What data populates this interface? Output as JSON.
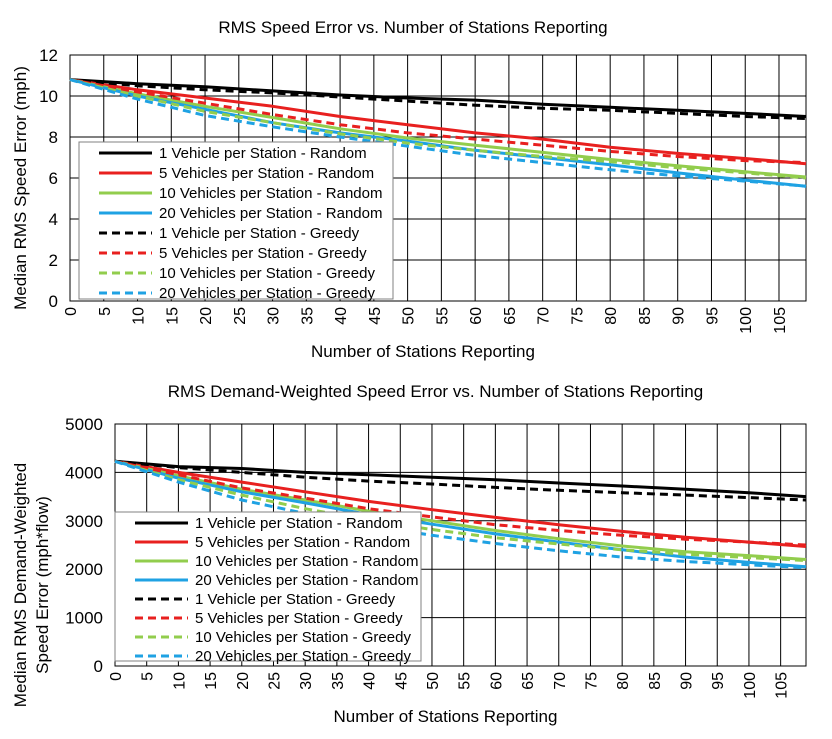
{
  "chart_data": [
    {
      "type": "line",
      "title": "RMS Speed Error vs. Number of Stations Reporting",
      "xlabel": "Number of Stations Reporting",
      "ylabel": "Median RMS Speed Error (mph)",
      "xlim": [
        0,
        109
      ],
      "ylim": [
        0,
        12
      ],
      "yticks": [
        "0",
        "2",
        "4",
        "6",
        "8",
        "10",
        "12"
      ],
      "xticks": [
        "0",
        "5",
        "10",
        "15",
        "20",
        "25",
        "30",
        "35",
        "40",
        "45",
        "50",
        "55",
        "60",
        "65",
        "70",
        "75",
        "80",
        "85",
        "90",
        "95",
        "100",
        "105"
      ],
      "grid": true,
      "legend_position": "left",
      "x": [
        0,
        10,
        20,
        30,
        40,
        50,
        60,
        70,
        80,
        90,
        100,
        109
      ],
      "series": [
        {
          "name": "1 Vehicle per Station - Random",
          "color": "#000000",
          "dash": "solid",
          "values": [
            10.8,
            10.6,
            10.45,
            10.25,
            10.05,
            9.9,
            9.8,
            9.6,
            9.45,
            9.3,
            9.15,
            9.0
          ]
        },
        {
          "name": "5 Vehicles per Station - Random",
          "color": "#e8201f",
          "dash": "solid",
          "values": [
            10.8,
            10.3,
            9.9,
            9.5,
            9.0,
            8.6,
            8.2,
            7.9,
            7.5,
            7.2,
            6.95,
            6.7
          ]
        },
        {
          "name": "10 Vehicles per Station - Random",
          "color": "#92cd4d",
          "dash": "solid",
          "values": [
            10.8,
            10.1,
            9.5,
            8.95,
            8.4,
            7.95,
            7.6,
            7.25,
            6.9,
            6.6,
            6.3,
            6.05
          ]
        },
        {
          "name": "20 Vehicles per Station - Random",
          "color": "#1fa2e3",
          "dash": "solid",
          "values": [
            10.8,
            10.0,
            9.35,
            8.7,
            8.2,
            7.8,
            7.35,
            7.0,
            6.65,
            6.25,
            5.9,
            5.6
          ]
        },
        {
          "name": "1 Vehicle per Station - Greedy",
          "color": "#000000",
          "dash": "dashed",
          "values": [
            10.8,
            10.5,
            10.3,
            10.15,
            9.95,
            9.75,
            9.55,
            9.4,
            9.3,
            9.15,
            9.0,
            8.9
          ]
        },
        {
          "name": "5 Vehicles per Station - Greedy",
          "color": "#e8201f",
          "dash": "dashed",
          "values": [
            10.8,
            10.2,
            9.65,
            9.1,
            8.6,
            8.2,
            7.9,
            7.6,
            7.3,
            7.05,
            6.85,
            6.75
          ]
        },
        {
          "name": "10 Vehicles per Station - Greedy",
          "color": "#92cd4d",
          "dash": "dashed",
          "values": [
            10.8,
            10.0,
            9.25,
            8.7,
            8.15,
            7.7,
            7.35,
            7.05,
            6.8,
            6.5,
            6.25,
            6.0
          ]
        },
        {
          "name": "20 Vehicles per Station - Greedy",
          "color": "#1fa2e3",
          "dash": "dashed",
          "values": [
            10.8,
            9.85,
            9.05,
            8.5,
            8.0,
            7.55,
            7.1,
            6.75,
            6.4,
            6.1,
            5.85,
            5.6
          ]
        }
      ]
    },
    {
      "type": "line",
      "title": "RMS Demand-Weighted Speed Error vs. Number of Stations Reporting",
      "xlabel": "Number of Stations Reporting",
      "ylabel": [
        "Median RMS Demand-Weighted",
        "Speed Error (mph*flow)"
      ],
      "xlim": [
        0,
        109
      ],
      "ylim": [
        0,
        5000
      ],
      "yticks": [
        "0",
        "1000",
        "2000",
        "3000",
        "4000",
        "5000"
      ],
      "xticks": [
        "0",
        "5",
        "10",
        "15",
        "20",
        "25",
        "30",
        "35",
        "40",
        "45",
        "50",
        "55",
        "60",
        "65",
        "70",
        "75",
        "80",
        "85",
        "90",
        "95",
        "100",
        "105"
      ],
      "grid": true,
      "legend_position": "left",
      "x": [
        0,
        10,
        20,
        30,
        40,
        50,
        60,
        70,
        80,
        90,
        100,
        109
      ],
      "series": [
        {
          "name": "1 Vehicle per Station - Random",
          "color": "#000000",
          "dash": "solid",
          "values": [
            4230,
            4120,
            4080,
            4000,
            3950,
            3900,
            3850,
            3780,
            3720,
            3650,
            3580,
            3500
          ]
        },
        {
          "name": "5 Vehicles per Station - Random",
          "color": "#e8201f",
          "dash": "solid",
          "values": [
            4230,
            4000,
            3800,
            3600,
            3400,
            3230,
            3070,
            2920,
            2780,
            2660,
            2560,
            2470
          ]
        },
        {
          "name": "10 Vehicles per Station - Random",
          "color": "#92cd4d",
          "dash": "solid",
          "values": [
            4230,
            3930,
            3650,
            3430,
            3200,
            3000,
            2800,
            2630,
            2480,
            2360,
            2280,
            2200
          ]
        },
        {
          "name": "20 Vehicles per Station - Random",
          "color": "#1fa2e3",
          "dash": "solid",
          "values": [
            4230,
            3880,
            3600,
            3370,
            3130,
            2930,
            2730,
            2560,
            2400,
            2250,
            2140,
            2050
          ]
        },
        {
          "name": "1 Vehicle per Station - Greedy",
          "color": "#000000",
          "dash": "dashed",
          "values": [
            4230,
            4100,
            4000,
            3900,
            3820,
            3760,
            3690,
            3630,
            3580,
            3530,
            3480,
            3430
          ]
        },
        {
          "name": "5 Vehicles per Station - Greedy",
          "color": "#e8201f",
          "dash": "dashed",
          "values": [
            4230,
            3950,
            3680,
            3470,
            3250,
            3080,
            2920,
            2800,
            2700,
            2620,
            2560,
            2500
          ]
        },
        {
          "name": "10 Vehicles per Station - Greedy",
          "color": "#92cd4d",
          "dash": "dashed",
          "values": [
            4230,
            3850,
            3530,
            3250,
            3010,
            2820,
            2650,
            2520,
            2400,
            2310,
            2240,
            2180
          ]
        },
        {
          "name": "20 Vehicles per Station - Greedy",
          "color": "#1fa2e3",
          "dash": "dashed",
          "values": [
            4230,
            3800,
            3430,
            3150,
            2900,
            2700,
            2530,
            2380,
            2250,
            2160,
            2090,
            2030
          ]
        }
      ]
    }
  ]
}
